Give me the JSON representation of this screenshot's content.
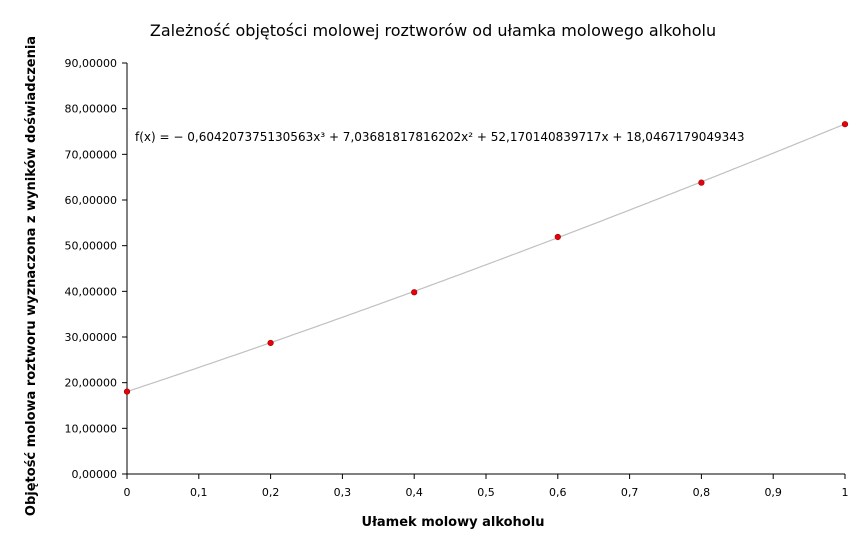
{
  "chart_data": {
    "type": "scatter",
    "title": "Zależność objętości molowej roztworów od ułamka molowego alkoholu",
    "xlabel": "Ułamek molowy alkoholu",
    "ylabel": "Objętość molowa roztworu wyznaczona z wyników doświadczenia",
    "xlim": [
      0,
      1
    ],
    "ylim": [
      0,
      90
    ],
    "x_ticks": [
      "0",
      "0,1",
      "0,2",
      "0,3",
      "0,4",
      "0,5",
      "0,6",
      "0,7",
      "0,8",
      "0,9",
      "1"
    ],
    "y_ticks": [
      "0,00000",
      "10,00000",
      "20,00000",
      "30,00000",
      "40,00000",
      "50,00000",
      "60,00000",
      "70,00000",
      "80,00000",
      "90,00000"
    ],
    "series": [
      {
        "x": [
          0,
          0.2,
          0.4,
          0.6,
          0.8,
          1.0
        ],
        "y": [
          18.05,
          28.7,
          39.8,
          51.9,
          63.8,
          76.6
        ],
        "marker_color": "#e8000b"
      }
    ],
    "trendline": {
      "type": "polynomial",
      "degree": 3,
      "coefficients": [
        -0.604207375130563,
        7.03681817816202,
        52.170140839717,
        18.0467179049343
      ],
      "equation": "f(x) = − 0,604207375130563x³ + 7,03681817816202x² + 52,170140839717x + 18,0467179049343",
      "color": "#c0c0c0"
    },
    "grid": false,
    "legend": "none"
  }
}
